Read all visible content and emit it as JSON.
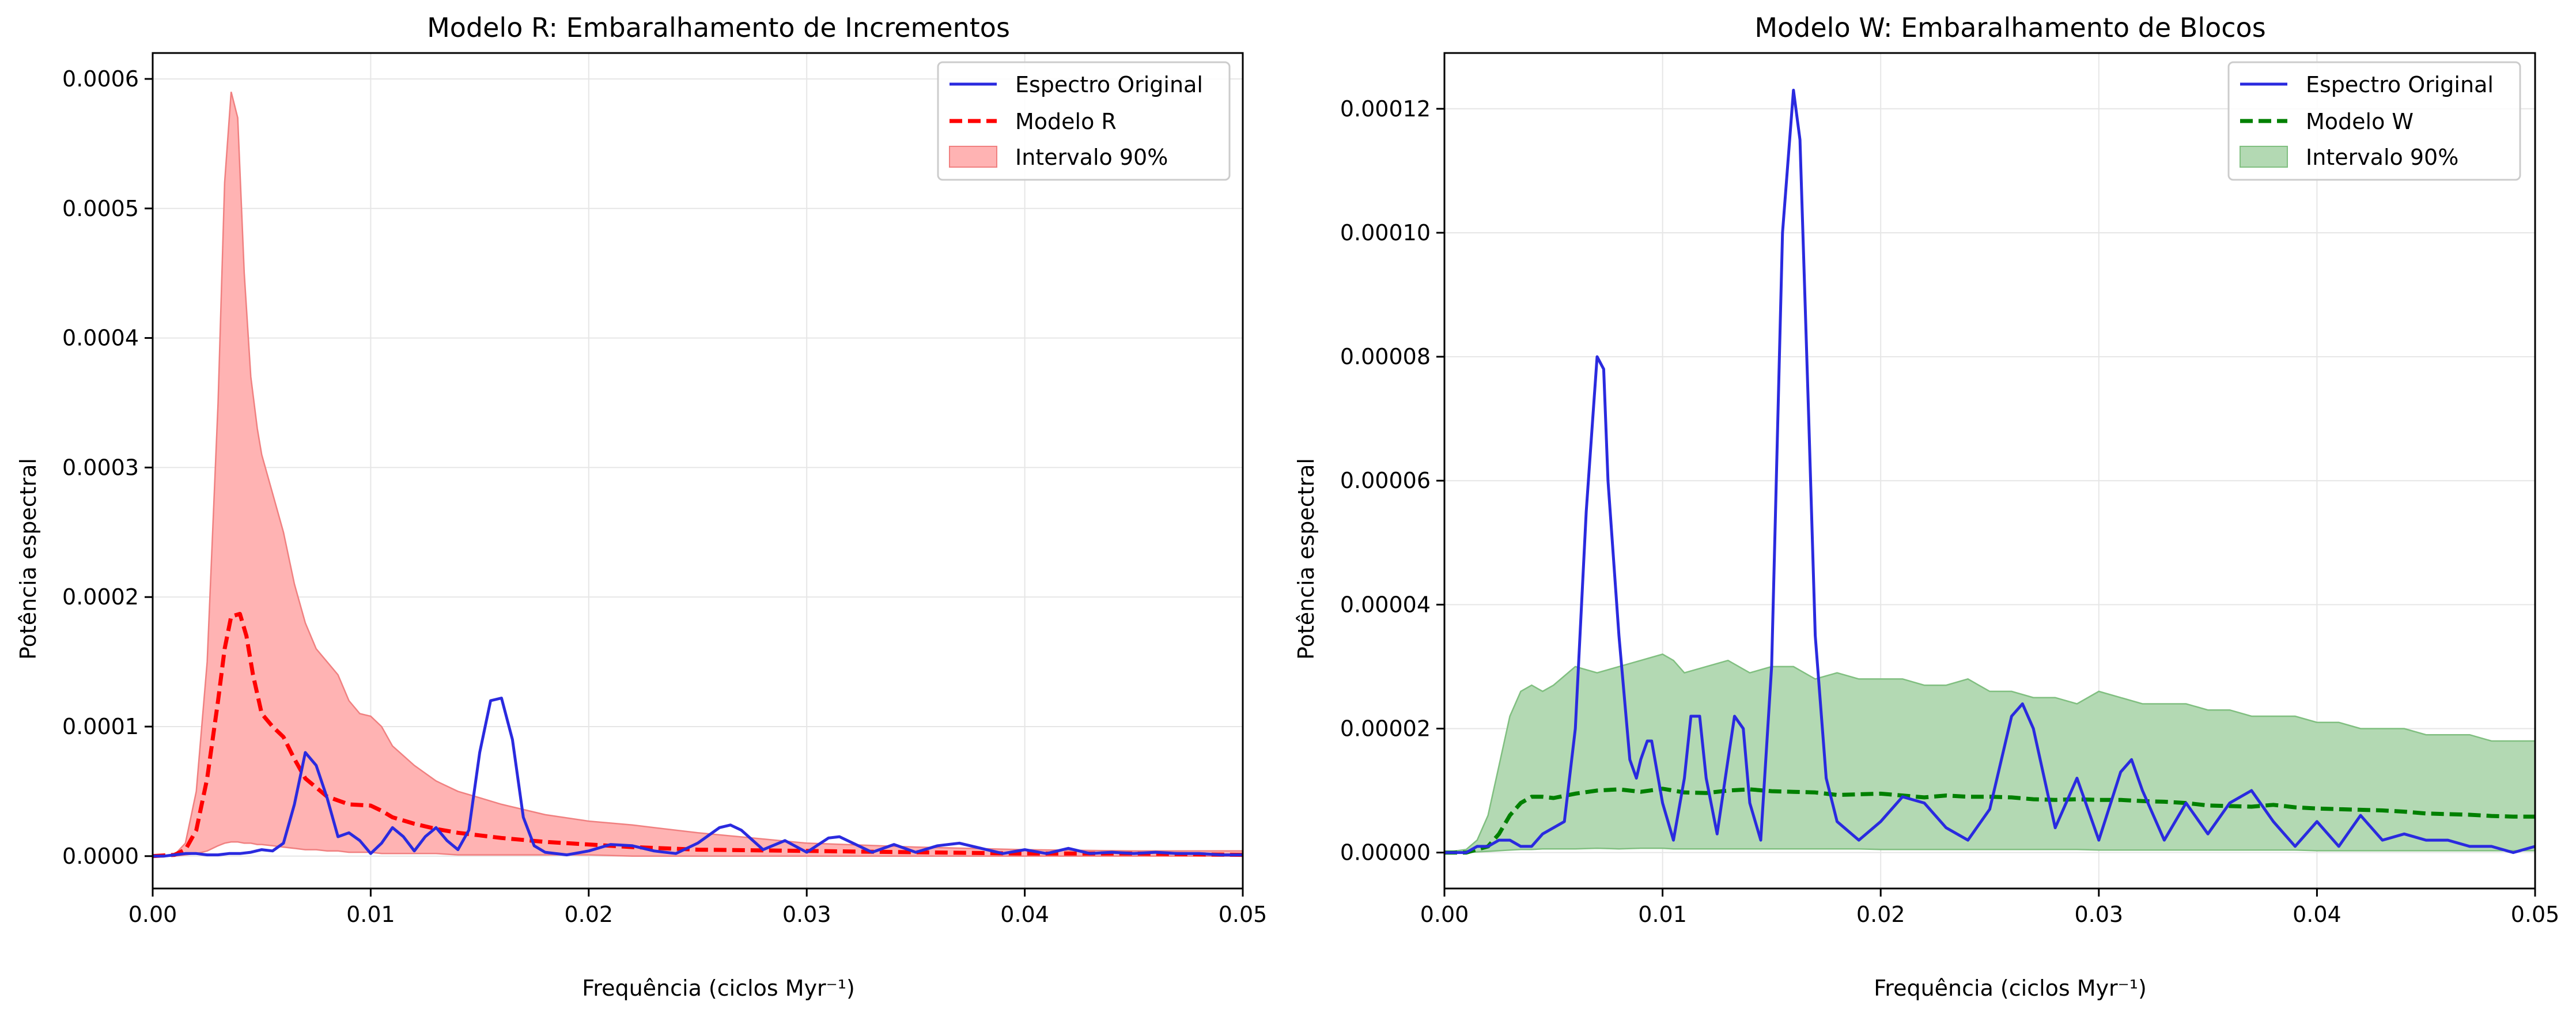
{
  "chart_data": [
    {
      "type": "line",
      "title": "Modelo R: Embaralhamento de Incrementos",
      "xlabel": "Frequência (ciclos Myr⁻¹)",
      "ylabel": "Potência espectral",
      "xlim": [
        0,
        0.05
      ],
      "ylim": [
        -2.5e-05,
        0.00062
      ],
      "xticks": [
        "0.00",
        "0.01",
        "0.02",
        "0.03",
        "0.04",
        "0.05"
      ],
      "yticks": [
        "0.0000",
        "0.0001",
        "0.0002",
        "0.0003",
        "0.0004",
        "0.0005",
        "0.0006"
      ],
      "grid": true,
      "legend_position": "top-right",
      "legend": [
        "Espectro Original",
        "Modelo R",
        "Intervalo 90%"
      ],
      "colors": {
        "original": "#2a2adf",
        "model": "#ff0000",
        "band_fill": "#ffb3b3",
        "band_edge": "#f08080"
      },
      "series": [
        {
          "name": "Espectro Original",
          "style": "solid",
          "x": [
            0,
            0.0005,
            0.001,
            0.0015,
            0.002,
            0.0025,
            0.003,
            0.0035,
            0.004,
            0.0045,
            0.005,
            0.0055,
            0.006,
            0.0065,
            0.007,
            0.0075,
            0.008,
            0.0085,
            0.009,
            0.0095,
            0.01,
            0.0105,
            0.011,
            0.0115,
            0.012,
            0.0125,
            0.013,
            0.0135,
            0.014,
            0.0145,
            0.015,
            0.0155,
            0.016,
            0.0165,
            0.017,
            0.0175,
            0.018,
            0.019,
            0.02,
            0.021,
            0.022,
            0.023,
            0.024,
            0.025,
            0.026,
            0.0265,
            0.027,
            0.028,
            0.029,
            0.03,
            0.031,
            0.0315,
            0.032,
            0.033,
            0.034,
            0.035,
            0.036,
            0.037,
            0.038,
            0.039,
            0.04,
            0.041,
            0.042,
            0.043,
            0.044,
            0.045,
            0.046,
            0.047,
            0.048,
            0.049,
            0.05
          ],
          "y": [
            0,
            0,
            1e-06,
            2e-06,
            2e-06,
            1e-06,
            1e-06,
            2e-06,
            2e-06,
            3e-06,
            5e-06,
            4e-06,
            1e-05,
            4e-05,
            8e-05,
            7e-05,
            4.5e-05,
            1.5e-05,
            1.8e-05,
            1.2e-05,
            2e-06,
            1e-05,
            2.2e-05,
            1.5e-05,
            4e-06,
            1.5e-05,
            2.2e-05,
            1.2e-05,
            5e-06,
            2e-05,
            8e-05,
            0.00012,
            0.000122,
            9e-05,
            3e-05,
            8e-06,
            3e-06,
            1e-06,
            4e-06,
            9e-06,
            8e-06,
            4e-06,
            2e-06,
            1e-05,
            2.2e-05,
            2.4e-05,
            2e-05,
            5e-06,
            1.2e-05,
            3e-06,
            1.4e-05,
            1.5e-05,
            1.1e-05,
            3e-06,
            9e-06,
            3e-06,
            8e-06,
            1e-05,
            6e-06,
            2e-06,
            5e-06,
            2e-06,
            6e-06,
            2e-06,
            3e-06,
            2e-06,
            3e-06,
            2e-06,
            2e-06,
            1e-06,
            1e-06
          ]
        },
        {
          "name": "Modelo R",
          "style": "dashed",
          "x": [
            0,
            0.001,
            0.0015,
            0.002,
            0.0025,
            0.003,
            0.0033,
            0.0036,
            0.004,
            0.0043,
            0.0046,
            0.005,
            0.0055,
            0.006,
            0.0065,
            0.007,
            0.0075,
            0.008,
            0.009,
            0.01,
            0.0105,
            0.011,
            0.012,
            0.013,
            0.014,
            0.015,
            0.016,
            0.018,
            0.02,
            0.022,
            0.025,
            0.03,
            0.035,
            0.04,
            0.045,
            0.05
          ],
          "y": [
            0,
            1e-06,
            5e-06,
            2e-05,
            6e-05,
            0.00012,
            0.00016,
            0.000185,
            0.000187,
            0.00017,
            0.00014,
            0.00011,
            0.0001,
            9.2e-05,
            7.5e-05,
            6e-05,
            5.3e-05,
            4.6e-05,
            4e-05,
            3.9e-05,
            3.5e-05,
            3e-05,
            2.5e-05,
            2.1e-05,
            1.8e-05,
            1.6e-05,
            1.4e-05,
            1.1e-05,
            9e-06,
            7e-06,
            5e-06,
            4e-06,
            3e-06,
            2e-06,
            2e-06,
            1e-06
          ]
        },
        {
          "name": "Intervalo 90%",
          "type": "band",
          "x": [
            0,
            0.001,
            0.0015,
            0.002,
            0.0025,
            0.003,
            0.0033,
            0.0036,
            0.0039,
            0.0042,
            0.0045,
            0.0048,
            0.005,
            0.0055,
            0.006,
            0.0065,
            0.007,
            0.0075,
            0.008,
            0.0085,
            0.009,
            0.0095,
            0.01,
            0.0105,
            0.011,
            0.012,
            0.013,
            0.014,
            0.015,
            0.016,
            0.018,
            0.02,
            0.022,
            0.025,
            0.03,
            0.035,
            0.04,
            0.045,
            0.05
          ],
          "y_low": [
            0,
            0,
            1e-06,
            2e-06,
            4e-06,
            8e-06,
            1e-05,
            1.1e-05,
            1.1e-05,
            1e-05,
            1e-05,
            9e-06,
            9e-06,
            8e-06,
            7e-06,
            6e-06,
            5e-06,
            5e-06,
            4e-06,
            4e-06,
            3e-06,
            3e-06,
            3e-06,
            2e-06,
            2e-06,
            2e-06,
            2e-06,
            1e-06,
            1e-06,
            1e-06,
            1e-06,
            1e-06,
            0,
            0,
            0,
            0,
            0,
            0,
            0
          ],
          "y_high": [
            0,
            1e-06,
            1e-05,
            5e-05,
            0.00015,
            0.00035,
            0.00052,
            0.00059,
            0.00057,
            0.00045,
            0.00037,
            0.00033,
            0.00031,
            0.00028,
            0.00025,
            0.00021,
            0.00018,
            0.00016,
            0.00015,
            0.00014,
            0.00012,
            0.00011,
            0.000108,
            0.0001,
            8.5e-05,
            7e-05,
            5.8e-05,
            5e-05,
            4.5e-05,
            4e-05,
            3.2e-05,
            2.7e-05,
            2.4e-05,
            1.8e-05,
            1e-05,
            7e-06,
            5e-06,
            4e-06,
            4e-06
          ]
        }
      ]
    },
    {
      "type": "line",
      "title": "Modelo W: Embaralhamento de Blocos",
      "xlabel": "Frequência (ciclos Myr⁻¹)",
      "ylabel": "Potência espectral",
      "xlim": [
        0,
        0.05
      ],
      "ylim": [
        -5.8e-06,
        0.000129
      ],
      "xticks": [
        "0.00",
        "0.01",
        "0.02",
        "0.03",
        "0.04",
        "0.05"
      ],
      "yticks": [
        "0.00000",
        "0.00002",
        "0.00004",
        "0.00006",
        "0.00008",
        "0.00010",
        "0.00012"
      ],
      "grid": true,
      "legend_position": "top-right",
      "legend": [
        "Espectro Original",
        "Modelo W",
        "Intervalo 90%"
      ],
      "colors": {
        "original": "#2a2adf",
        "model": "#008000",
        "band_fill": "#b3d9b3",
        "band_edge": "#80bf80"
      },
      "series": [
        {
          "name": "Espectro Original",
          "style": "solid",
          "x": [
            0,
            0.001,
            0.0015,
            0.002,
            0.0025,
            0.003,
            0.0035,
            0.004,
            0.0045,
            0.005,
            0.0055,
            0.006,
            0.0065,
            0.0068,
            0.007,
            0.0073,
            0.0075,
            0.008,
            0.0085,
            0.0088,
            0.009,
            0.0093,
            0.0095,
            0.01,
            0.0105,
            0.011,
            0.0113,
            0.0117,
            0.012,
            0.0125,
            0.013,
            0.0133,
            0.0137,
            0.014,
            0.0145,
            0.015,
            0.0155,
            0.016,
            0.0163,
            0.0167,
            0.017,
            0.0175,
            0.018,
            0.019,
            0.02,
            0.021,
            0.022,
            0.023,
            0.024,
            0.025,
            0.026,
            0.0265,
            0.027,
            0.028,
            0.029,
            0.03,
            0.031,
            0.0315,
            0.032,
            0.033,
            0.034,
            0.035,
            0.036,
            0.037,
            0.038,
            0.039,
            0.04,
            0.041,
            0.042,
            0.043,
            0.044,
            0.045,
            0.046,
            0.047,
            0.048,
            0.049,
            0.05
          ],
          "y": [
            0,
            0,
            1e-06,
            1e-06,
            2e-06,
            2e-06,
            1e-06,
            1e-06,
            3e-06,
            4e-06,
            5e-06,
            2e-05,
            5.5e-05,
            7e-05,
            8e-05,
            7.8e-05,
            6e-05,
            3.5e-05,
            1.5e-05,
            1.2e-05,
            1.5e-05,
            1.8e-05,
            1.8e-05,
            8e-06,
            2e-06,
            1.2e-05,
            2.2e-05,
            2.2e-05,
            1.2e-05,
            3e-06,
            1.5e-05,
            2.2e-05,
            2e-05,
            8e-06,
            2e-06,
            3e-05,
            0.0001,
            0.000123,
            0.000115,
            7e-05,
            3.5e-05,
            1.2e-05,
            5e-06,
            2e-06,
            5e-06,
            9e-06,
            8e-06,
            4e-06,
            2e-06,
            7e-06,
            2.2e-05,
            2.4e-05,
            2e-05,
            4e-06,
            1.2e-05,
            2e-06,
            1.3e-05,
            1.5e-05,
            1e-05,
            2e-06,
            8e-06,
            3e-06,
            8e-06,
            1e-05,
            5e-06,
            1e-06,
            5e-06,
            1e-06,
            6e-06,
            2e-06,
            3e-06,
            2e-06,
            2e-06,
            1e-06,
            1e-06,
            0,
            1e-06
          ]
        },
        {
          "name": "Modelo W",
          "style": "dashed",
          "x": [
            0,
            0.001,
            0.0015,
            0.002,
            0.0025,
            0.003,
            0.0035,
            0.004,
            0.0045,
            0.005,
            0.006,
            0.007,
            0.008,
            0.009,
            0.01,
            0.011,
            0.012,
            0.013,
            0.014,
            0.015,
            0.016,
            0.017,
            0.018,
            0.019,
            0.02,
            0.021,
            0.022,
            0.023,
            0.024,
            0.025,
            0.026,
            0.027,
            0.028,
            0.029,
            0.03,
            0.031,
            0.032,
            0.033,
            0.034,
            0.035,
            0.036,
            0.037,
            0.038,
            0.039,
            0.04,
            0.041,
            0.042,
            0.043,
            0.044,
            0.045,
            0.046,
            0.047,
            0.048,
            0.049,
            0.05
          ],
          "y": [
            0,
            0,
            5e-07,
            1e-06,
            3e-06,
            6e-06,
            8e-06,
            9e-06,
            9e-06,
            8.8e-06,
            9.5e-06,
            1e-05,
            1.02e-05,
            9.8e-06,
            1.03e-05,
            9.7e-06,
            9.6e-06,
            1e-05,
            1.02e-05,
            9.9e-06,
            9.8e-06,
            9.7e-06,
            9.3e-06,
            9.4e-06,
            9.5e-06,
            9.2e-06,
            8.9e-06,
            9.2e-06,
            9e-06,
            9e-06,
            8.9e-06,
            8.6e-06,
            8.5e-06,
            8.6e-06,
            8.5e-06,
            8.5e-06,
            8.3e-06,
            8.2e-06,
            8e-06,
            7.6e-06,
            7.5e-06,
            7.4e-06,
            7.7e-06,
            7.3e-06,
            7.1e-06,
            7e-06,
            6.9e-06,
            6.8e-06,
            6.6e-06,
            6.3e-06,
            6.2e-06,
            6.1e-06,
            5.9e-06,
            5.8e-06,
            5.8e-06
          ]
        },
        {
          "name": "Intervalo 90%",
          "type": "band",
          "x": [
            0,
            0.001,
            0.0015,
            0.002,
            0.0025,
            0.003,
            0.0035,
            0.004,
            0.0045,
            0.005,
            0.006,
            0.007,
            0.008,
            0.009,
            0.01,
            0.0105,
            0.011,
            0.012,
            0.013,
            0.014,
            0.015,
            0.016,
            0.017,
            0.018,
            0.019,
            0.02,
            0.021,
            0.022,
            0.023,
            0.024,
            0.025,
            0.026,
            0.027,
            0.028,
            0.029,
            0.03,
            0.031,
            0.032,
            0.033,
            0.034,
            0.035,
            0.036,
            0.037,
            0.038,
            0.039,
            0.04,
            0.041,
            0.042,
            0.043,
            0.044,
            0.045,
            0.046,
            0.047,
            0.048,
            0.049,
            0.05
          ],
          "y_low": [
            0,
            0,
            1e-07,
            2e-07,
            3e-07,
            4e-07,
            5e-07,
            5e-07,
            6e-07,
            6e-07,
            6e-07,
            7e-07,
            6e-07,
            7e-07,
            7e-07,
            6e-07,
            6e-07,
            6e-07,
            6e-07,
            6e-07,
            6e-07,
            6e-07,
            6e-07,
            6e-07,
            6e-07,
            5e-07,
            5e-07,
            5e-07,
            5e-07,
            5e-07,
            5e-07,
            5e-07,
            5e-07,
            5e-07,
            5e-07,
            4e-07,
            4e-07,
            4e-07,
            4e-07,
            4e-07,
            4e-07,
            4e-07,
            4e-07,
            4e-07,
            4e-07,
            3e-07,
            3e-07,
            3e-07,
            3e-07,
            3e-07,
            3e-07,
            3e-07,
            3e-07,
            3e-07,
            3e-07,
            3e-07
          ],
          "y_high": [
            0,
            5e-07,
            2e-06,
            6e-06,
            1.4e-05,
            2.2e-05,
            2.6e-05,
            2.7e-05,
            2.6e-05,
            2.7e-05,
            3e-05,
            2.9e-05,
            3e-05,
            3.1e-05,
            3.2e-05,
            3.1e-05,
            2.9e-05,
            3e-05,
            3.1e-05,
            2.9e-05,
            3e-05,
            3e-05,
            2.8e-05,
            2.9e-05,
            2.8e-05,
            2.8e-05,
            2.8e-05,
            2.7e-05,
            2.7e-05,
            2.8e-05,
            2.6e-05,
            2.6e-05,
            2.5e-05,
            2.5e-05,
            2.4e-05,
            2.6e-05,
            2.5e-05,
            2.4e-05,
            2.4e-05,
            2.4e-05,
            2.3e-05,
            2.3e-05,
            2.2e-05,
            2.2e-05,
            2.2e-05,
            2.1e-05,
            2.1e-05,
            2e-05,
            2e-05,
            2e-05,
            1.9e-05,
            1.9e-05,
            1.9e-05,
            1.8e-05,
            1.8e-05,
            1.8e-05
          ]
        }
      ]
    }
  ]
}
